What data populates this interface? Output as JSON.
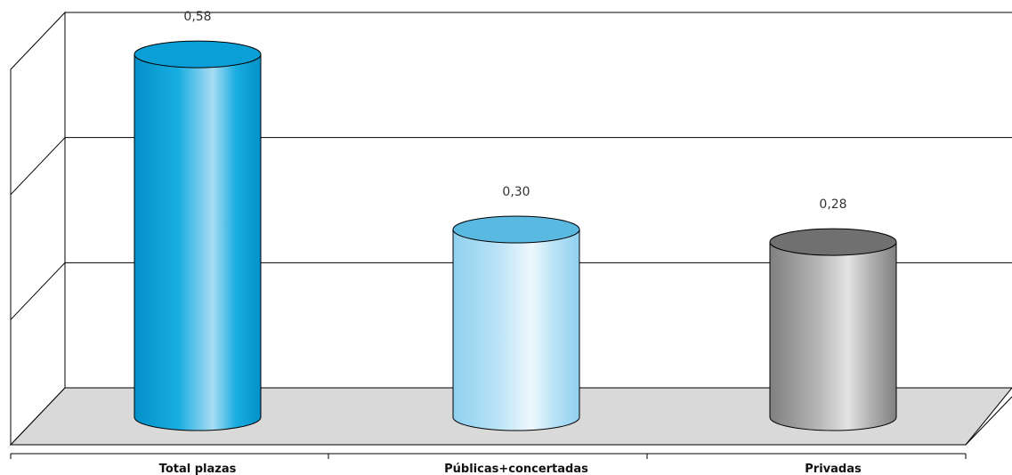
{
  "chart_data": {
    "type": "bar",
    "style": "3d-cylinder",
    "categories": [
      "Total plazas",
      "Públicas+concertadas",
      "Privadas"
    ],
    "values": [
      0.58,
      0.3,
      0.28
    ],
    "value_labels": [
      "0,58",
      "0,30",
      "0,28"
    ],
    "title": "",
    "xlabel": "",
    "ylabel": "",
    "ylim": [
      0,
      0.6
    ],
    "grid": true,
    "legend": "none",
    "colors": {
      "Total plazas": {
        "light": "#a8dcf4",
        "mid": "#1aaee0",
        "dark": "#0290c8",
        "top": "#0a9fd6"
      },
      "Públicas+concertadas": {
        "light": "#eef8fd",
        "mid": "#b9e3f6",
        "dark": "#8fd0ef",
        "top": "#5ab9e0"
      },
      "Privadas": {
        "light": "#e3e3e3",
        "mid": "#b0b0b0",
        "dark": "#808080",
        "top": "#707070"
      }
    },
    "floor_color": "#d9d9d9"
  }
}
